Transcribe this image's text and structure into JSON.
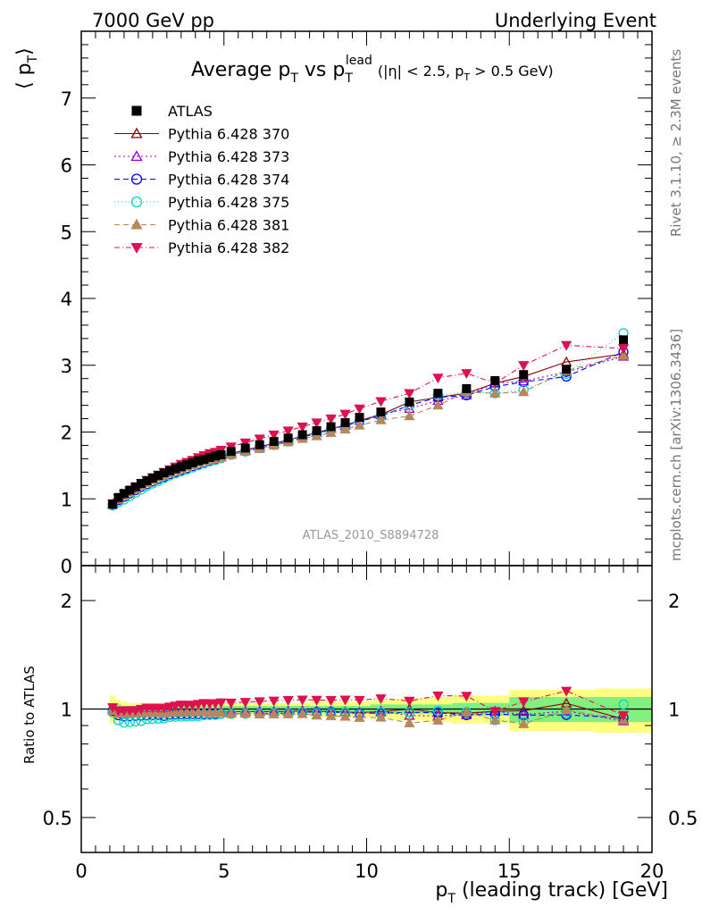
{
  "header": {
    "left": "7000 GeV pp",
    "right": "Underlying Event"
  },
  "side_text": {
    "rivet": "Rivet 3.1.10, ≥ 2.3M events",
    "mcplots": "mcplots.cern.ch [arXiv:1306.3436]"
  },
  "watermark": "ATLAS_2010_S8894728",
  "colors": {
    "ATLAS": "#000000",
    "s370": "#8b0000",
    "s373": "#9400d3",
    "s374": "#0000ff",
    "s375": "#00d8c0",
    "s381": "#b8865b",
    "s382": "#e0104f",
    "band_inner": "#80f080",
    "band_outer": "#ffff80"
  },
  "chart_data": [
    {
      "type": "scatter",
      "title_main": "Average p",
      "title_sub1": "T",
      "title_mid": " vs p",
      "title_sup": "lead",
      "title_sub2": "T",
      "title_cut_a": "(|η| < 2.5, p",
      "title_cut_sub": "T",
      "title_cut_b": " > 0.5 GeV)",
      "ylabel_main": "⟨ p",
      "ylabel_sub": "T",
      "ylabel_end": "⟩",
      "xlim": [
        0,
        20
      ],
      "ylim": [
        0,
        8
      ],
      "yticks": [
        "0",
        "1",
        "2",
        "3",
        "4",
        "5",
        "6",
        "7"
      ],
      "x": [
        1.1,
        1.3,
        1.5,
        1.7,
        1.9,
        2.1,
        2.3,
        2.5,
        2.7,
        2.9,
        3.1,
        3.3,
        3.5,
        3.7,
        3.9,
        4.1,
        4.3,
        4.5,
        4.7,
        4.9,
        5.25,
        5.75,
        6.25,
        6.75,
        7.25,
        7.75,
        8.25,
        8.75,
        9.25,
        9.75,
        10.5,
        11.5,
        12.5,
        13.5,
        14.5,
        15.5,
        17.0,
        19.0
      ],
      "series": [
        {
          "name": "ATLAS",
          "key": "ATLAS",
          "marker": "square-filled",
          "values": [
            0.92,
            1.02,
            1.08,
            1.13,
            1.18,
            1.23,
            1.27,
            1.31,
            1.35,
            1.39,
            1.42,
            1.45,
            1.48,
            1.51,
            1.54,
            1.57,
            1.59,
            1.62,
            1.64,
            1.66,
            1.71,
            1.76,
            1.81,
            1.86,
            1.91,
            1.96,
            2.02,
            2.08,
            2.14,
            2.22,
            2.3,
            2.45,
            2.58,
            2.65,
            2.77,
            2.86,
            2.94,
            3.38
          ]
        },
        {
          "name": "Pythia 6.428 370",
          "key": "s370",
          "marker": "triangle-open",
          "dash": "",
          "values": [
            0.92,
            0.99,
            1.05,
            1.1,
            1.15,
            1.2,
            1.24,
            1.28,
            1.32,
            1.35,
            1.39,
            1.42,
            1.45,
            1.48,
            1.51,
            1.54,
            1.56,
            1.59,
            1.61,
            1.63,
            1.68,
            1.73,
            1.78,
            1.83,
            1.88,
            1.94,
            1.99,
            2.05,
            2.1,
            2.17,
            2.26,
            2.45,
            2.52,
            2.58,
            2.73,
            2.83,
            3.05,
            3.17
          ]
        },
        {
          "name": "Pythia 6.428 373",
          "key": "s373",
          "marker": "triangle-open",
          "dash": "2,3",
          "values": [
            0.92,
            0.99,
            1.05,
            1.1,
            1.15,
            1.2,
            1.24,
            1.28,
            1.32,
            1.35,
            1.39,
            1.42,
            1.45,
            1.48,
            1.51,
            1.54,
            1.56,
            1.59,
            1.61,
            1.63,
            1.68,
            1.73,
            1.78,
            1.83,
            1.88,
            1.94,
            1.99,
            2.05,
            2.1,
            2.17,
            2.27,
            2.35,
            2.47,
            2.55,
            2.73,
            2.76,
            2.9,
            3.13
          ]
        },
        {
          "name": "Pythia 6.428 374",
          "key": "s374",
          "marker": "circle-open",
          "dash": "6,4",
          "values": [
            0.91,
            0.98,
            1.03,
            1.08,
            1.13,
            1.18,
            1.22,
            1.26,
            1.3,
            1.33,
            1.37,
            1.4,
            1.43,
            1.46,
            1.49,
            1.52,
            1.54,
            1.57,
            1.59,
            1.61,
            1.66,
            1.71,
            1.76,
            1.81,
            1.86,
            1.92,
            1.98,
            2.04,
            2.09,
            2.16,
            2.24,
            2.4,
            2.52,
            2.55,
            2.68,
            2.75,
            2.83,
            3.2
          ]
        },
        {
          "name": "Pythia 6.428 375",
          "key": "s375",
          "marker": "circle-open",
          "dash": "1,3",
          "values": [
            0.9,
            0.95,
            0.99,
            1.04,
            1.09,
            1.14,
            1.19,
            1.23,
            1.27,
            1.31,
            1.35,
            1.38,
            1.41,
            1.44,
            1.47,
            1.5,
            1.53,
            1.56,
            1.58,
            1.61,
            1.66,
            1.71,
            1.76,
            1.81,
            1.86,
            1.92,
            1.97,
            2.03,
            2.09,
            2.15,
            2.25,
            2.4,
            2.55,
            2.6,
            2.58,
            2.63,
            2.87,
            3.48
          ]
        },
        {
          "name": "Pythia 6.428 381",
          "key": "s381",
          "marker": "triangle-filled",
          "dash": "6,4",
          "values": [
            0.91,
            0.99,
            1.05,
            1.1,
            1.15,
            1.2,
            1.24,
            1.28,
            1.32,
            1.35,
            1.39,
            1.42,
            1.45,
            1.48,
            1.51,
            1.54,
            1.56,
            1.58,
            1.6,
            1.62,
            1.66,
            1.71,
            1.75,
            1.8,
            1.85,
            1.9,
            1.94,
            1.99,
            2.04,
            2.1,
            2.18,
            2.24,
            2.4,
            2.6,
            2.58,
            2.6,
            2.92,
            3.15
          ]
        },
        {
          "name": "Pythia 6.428 382",
          "key": "s382",
          "marker": "triangle-down-filled",
          "dash": "6,3,1,3",
          "values": [
            0.93,
            1.01,
            1.07,
            1.12,
            1.17,
            1.23,
            1.28,
            1.32,
            1.36,
            1.4,
            1.44,
            1.48,
            1.52,
            1.55,
            1.58,
            1.62,
            1.65,
            1.68,
            1.7,
            1.73,
            1.78,
            1.84,
            1.9,
            1.96,
            2.02,
            2.08,
            2.14,
            2.2,
            2.27,
            2.35,
            2.46,
            2.58,
            2.81,
            2.88,
            2.73,
            3.0,
            3.3,
            3.25
          ]
        }
      ]
    },
    {
      "type": "scatter",
      "ylabel": "Ratio to ATLAS",
      "xlabel_main": "p",
      "xlabel_sub": "T",
      "xlabel_rest": " (leading track) [GeV]",
      "xlim": [
        0,
        20
      ],
      "ylim": [
        0.4,
        2.5
      ],
      "yscale": "log",
      "yticks_major": [
        "0.5",
        "1",
        "2"
      ],
      "xticks": [
        "0",
        "5",
        "10",
        "15",
        "20"
      ],
      "band_inner": [
        0.03,
        0.03,
        0.02,
        0.02,
        0.02,
        0.02,
        0.02,
        0.02,
        0.02,
        0.02,
        0.02,
        0.02,
        0.02,
        0.02,
        0.02,
        0.02,
        0.02,
        0.02,
        0.02,
        0.02,
        0.02,
        0.02,
        0.02,
        0.02,
        0.02,
        0.02,
        0.02,
        0.02,
        0.02,
        0.02,
        0.03,
        0.03,
        0.03,
        0.04,
        0.04,
        0.08,
        0.08,
        0.08
      ],
      "band_outer": [
        0.09,
        0.06,
        0.05,
        0.04,
        0.04,
        0.04,
        0.04,
        0.04,
        0.04,
        0.04,
        0.04,
        0.04,
        0.04,
        0.04,
        0.04,
        0.04,
        0.04,
        0.04,
        0.04,
        0.04,
        0.04,
        0.04,
        0.04,
        0.04,
        0.04,
        0.04,
        0.05,
        0.05,
        0.05,
        0.05,
        0.06,
        0.07,
        0.08,
        0.09,
        0.09,
        0.13,
        0.13,
        0.14
      ]
    }
  ]
}
